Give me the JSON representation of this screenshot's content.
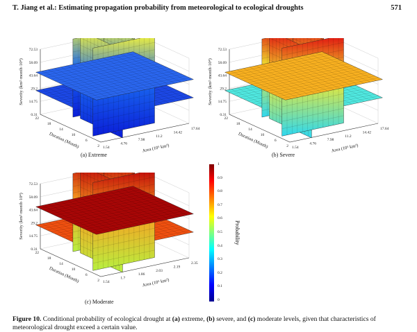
{
  "header": {
    "title": "T. Jiang et al.: Estimating propagation probability from meteorological to ecological droughts",
    "page_number": "571"
  },
  "panels": [
    {
      "id": "a",
      "caption": "(a) Extreme",
      "severity_label": "Severity (km²·month·10⁴)",
      "severity_ticks": [
        "72.53",
        "58.09",
        "43.64",
        "29.2",
        "14.75",
        "0.31"
      ],
      "duration_label": "Duration (Month)",
      "duration_ticks": [
        "22",
        "18",
        "14",
        "10",
        "6",
        "2"
      ],
      "area_label": "Area (10⁵ km²)",
      "area_ticks": [
        "1.54",
        "4.76",
        "7.98",
        "11.2",
        "14.42",
        "17.64"
      ],
      "colors": {
        "slab_bottom": "#0a1ed8",
        "slab_mid": "#1a6af0",
        "slab_top": "#f2f23a",
        "plane_low": "#1c48e6",
        "plane_high": "#2a66ee"
      }
    },
    {
      "id": "b",
      "caption": "(b) Severe",
      "severity_label": "Severity (km²·month·10⁴)",
      "severity_ticks": [
        "72.53",
        "58.09",
        "43.64",
        "29.2",
        "14.75",
        "0.31"
      ],
      "duration_label": "Duration (Month)",
      "duration_ticks": [
        "22",
        "18",
        "14",
        "10",
        "6",
        "2"
      ],
      "area_label": "Area (10⁵ km²)",
      "area_ticks": [
        "1.54",
        "4.76",
        "7.98",
        "11.2",
        "14.42",
        "17.64"
      ],
      "colors": {
        "slab_bottom": "#2ed8f0",
        "slab_mid": "#f0e830",
        "slab_top": "#e01010",
        "plane_low": "#50e8e0",
        "plane_high": "#f8b020"
      }
    },
    {
      "id": "c",
      "caption": "(c) Moderate",
      "severity_label": "Severity (km²·month·10⁴)",
      "severity_ticks": [
        "72.53",
        "58.09",
        "43.64",
        "29.2",
        "14.75",
        "0.31"
      ],
      "duration_label": "Duration (Month)",
      "duration_ticks": [
        "22",
        "18",
        "14",
        "10",
        "6",
        "2"
      ],
      "area_label": "Area (10⁵ km²)",
      "area_ticks": [
        "1.54",
        "1.7",
        "1.86",
        "2.03",
        "2.19",
        "2.35"
      ],
      "colors": {
        "slab_bottom": "#b8f040",
        "slab_mid": "#f8a020",
        "slab_top": "#c00808",
        "plane_low": "#f05010",
        "plane_high": "#a80606"
      }
    }
  ],
  "colorbar": {
    "label": "Probability",
    "ticks": [
      "1",
      "0.9",
      "0.8",
      "0.7",
      "0.6",
      "0.5",
      "0.4",
      "0.3",
      "0.2",
      "0.1",
      "0"
    ]
  },
  "figure_caption": {
    "label": "Figure 10.",
    "text_1": " Conditional probability of ecological drought at ",
    "a": "(a)",
    "text_2": " extreme, ",
    "b": "(b)",
    "text_3": " severe, and ",
    "c": "(c)",
    "text_4": " moderate levels, given that characteristics of meteorological drought exceed a certain value."
  }
}
